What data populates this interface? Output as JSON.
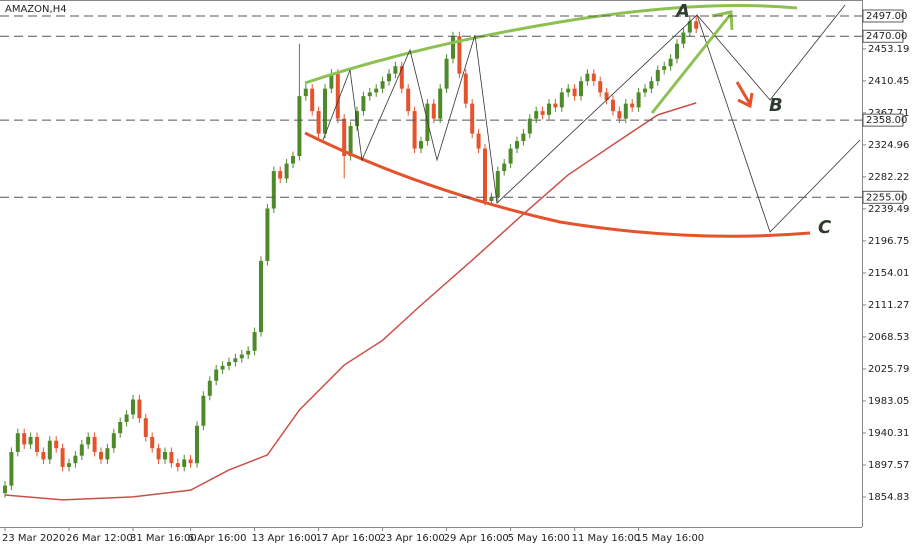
{
  "chart_data": {
    "type": "candlestick",
    "title": "AMAZON,H4",
    "up_color": "#4f8a2a",
    "down_color": "#e5532d",
    "open": [
      1860,
      1870,
      1915,
      1940,
      1925,
      1935,
      1915,
      1905,
      1930,
      1920,
      1895,
      1900,
      1910,
      1925,
      1935,
      1915,
      1905,
      1920,
      1940,
      1955,
      1965,
      1985,
      1960,
      1935,
      1920,
      1905,
      1915,
      1900,
      1895,
      1905,
      1900,
      1950,
      1990,
      2010,
      2025,
      2030,
      2035,
      2040,
      2045,
      2050,
      2075,
      2170,
      2240,
      2290,
      2280,
      2300,
      2310,
      2390,
      2400,
      2370,
      2340,
      2400,
      2420,
      2360,
      2310,
      2350,
      2370,
      2390,
      2395,
      2400,
      2410,
      2420,
      2430,
      2400,
      2370,
      2320,
      2330,
      2380,
      2360,
      2400,
      2440,
      2470,
      2420,
      2380,
      2340,
      2320,
      2250,
      2255,
      2290,
      2300,
      2320,
      2330,
      2340,
      2360,
      2370,
      2365,
      2380,
      2375,
      2395,
      2400,
      2390,
      2410,
      2420,
      2410,
      2395,
      2385,
      2370,
      2360,
      2380,
      2375,
      2395,
      2400,
      2410,
      2425,
      2430,
      2440,
      2460,
      2475,
      2490
    ],
    "high": [
      1876,
      1921,
      1946,
      1946,
      1941,
      1941,
      1921,
      1936,
      1936,
      1926,
      1906,
      1916,
      1931,
      1941,
      1941,
      1921,
      1926,
      1946,
      1961,
      1971,
      1991,
      1991,
      1966,
      1941,
      1926,
      1921,
      1921,
      1906,
      1911,
      1911,
      1956,
      1996,
      2016,
      2031,
      2036,
      2041,
      2046,
      2051,
      2056,
      2081,
      2176,
      2246,
      2296,
      2296,
      2306,
      2316,
      2460,
      2406,
      2406,
      2376,
      2406,
      2426,
      2426,
      2366,
      2356,
      2376,
      2396,
      2401,
      2406,
      2416,
      2426,
      2436,
      2436,
      2406,
      2376,
      2336,
      2386,
      2386,
      2406,
      2446,
      2476,
      2476,
      2426,
      2386,
      2346,
      2326,
      2261,
      2296,
      2306,
      2326,
      2336,
      2346,
      2366,
      2376,
      2376,
      2386,
      2386,
      2401,
      2406,
      2406,
      2416,
      2426,
      2426,
      2416,
      2401,
      2391,
      2376,
      2386,
      2386,
      2401,
      2406,
      2416,
      2431,
      2436,
      2446,
      2466,
      2481,
      2496,
      2497
    ],
    "low": [
      1854,
      1864,
      1909,
      1919,
      1919,
      1909,
      1899,
      1899,
      1914,
      1889,
      1889,
      1894,
      1904,
      1919,
      1909,
      1899,
      1899,
      1914,
      1934,
      1949,
      1959,
      1954,
      1929,
      1914,
      1899,
      1899,
      1894,
      1889,
      1889,
      1894,
      1894,
      1944,
      1984,
      2004,
      2019,
      2024,
      2029,
      2034,
      2039,
      2044,
      2069,
      2164,
      2234,
      2274,
      2274,
      2294,
      2304,
      2384,
      2364,
      2334,
      2334,
      2394,
      2354,
      2280,
      2304,
      2344,
      2364,
      2384,
      2389,
      2394,
      2404,
      2414,
      2394,
      2364,
      2314,
      2314,
      2324,
      2354,
      2354,
      2394,
      2434,
      2414,
      2374,
      2334,
      2314,
      2244,
      2244,
      2249,
      2284,
      2294,
      2314,
      2324,
      2334,
      2354,
      2359,
      2359,
      2369,
      2369,
      2389,
      2384,
      2384,
      2404,
      2404,
      2389,
      2379,
      2364,
      2354,
      2354,
      2369,
      2369,
      2389,
      2394,
      2404,
      2419,
      2424,
      2434,
      2454,
      2469,
      2474
    ],
    "close": [
      1870,
      1915,
      1940,
      1925,
      1935,
      1915,
      1905,
      1930,
      1920,
      1895,
      1900,
      1910,
      1925,
      1935,
      1915,
      1905,
      1920,
      1940,
      1955,
      1965,
      1985,
      1960,
      1935,
      1920,
      1905,
      1915,
      1900,
      1895,
      1905,
      1900,
      1950,
      1990,
      2010,
      2025,
      2030,
      2035,
      2040,
      2045,
      2050,
      2075,
      2170,
      2240,
      2290,
      2280,
      2300,
      2310,
      2390,
      2400,
      2370,
      2340,
      2400,
      2420,
      2360,
      2310,
      2350,
      2370,
      2390,
      2395,
      2400,
      2410,
      2420,
      2430,
      2400,
      2370,
      2320,
      2330,
      2380,
      2360,
      2400,
      2440,
      2470,
      2420,
      2380,
      2340,
      2320,
      2250,
      2255,
      2290,
      2300,
      2320,
      2330,
      2340,
      2360,
      2370,
      2365,
      2380,
      2375,
      2395,
      2400,
      2390,
      2410,
      2420,
      2410,
      2395,
      2385,
      2370,
      2360,
      2380,
      2375,
      2395,
      2400,
      2410,
      2425,
      2430,
      2440,
      2460,
      2475,
      2490,
      2480
    ],
    "ma": {
      "color": "#c9504a",
      "x": [
        0,
        9,
        20,
        29,
        35,
        41,
        46,
        53,
        59,
        65,
        73,
        80,
        88,
        96,
        102,
        108
      ],
      "values": [
        1857.5,
        1851,
        1855,
        1864,
        1891,
        1911,
        1971,
        2031,
        2064,
        2111,
        2171,
        2225,
        2285,
        2331,
        2365,
        2381
      ]
    },
    "ylim": [
      1814.78,
      2518.36
    ],
    "yticks": [
      2453.19,
      2410.45,
      2367.71,
      2324.96,
      2282.22,
      2239.49,
      2196.75,
      2154.01,
      2111.27,
      2068.53,
      2025.79,
      1983.05,
      1940.31,
      1897.57,
      1854.83
    ],
    "levels": [
      {
        "value": 2497,
        "label": "2497.00"
      },
      {
        "value": 2470,
        "label": "2470.00"
      },
      {
        "value": 2358,
        "label": "2358.00"
      },
      {
        "value": 2255,
        "label": "2255.00"
      }
    ],
    "xticks": [
      {
        "value": 0,
        "label": "23 Mar 2020"
      },
      {
        "value": 10,
        "label": "26 Mar 12:00"
      },
      {
        "value": 20,
        "label": "31 Mar 16:00"
      },
      {
        "value": 29,
        "label": "6 Apr 16:00"
      },
      {
        "value": 39,
        "label": "13 Apr 16:00"
      },
      {
        "value": 49,
        "label": "17 Apr 16:00"
      },
      {
        "value": 59,
        "label": "23 Apr 16:00"
      },
      {
        "value": 69,
        "label": "29 Apr 16:00"
      },
      {
        "value": 79,
        "label": "5 May 16:00"
      },
      {
        "value": 89,
        "label": "11 May 16:00"
      },
      {
        "value": 99,
        "label": "15 May 16:00"
      }
    ],
    "annotations": [
      "A",
      "B",
      "C"
    ]
  }
}
